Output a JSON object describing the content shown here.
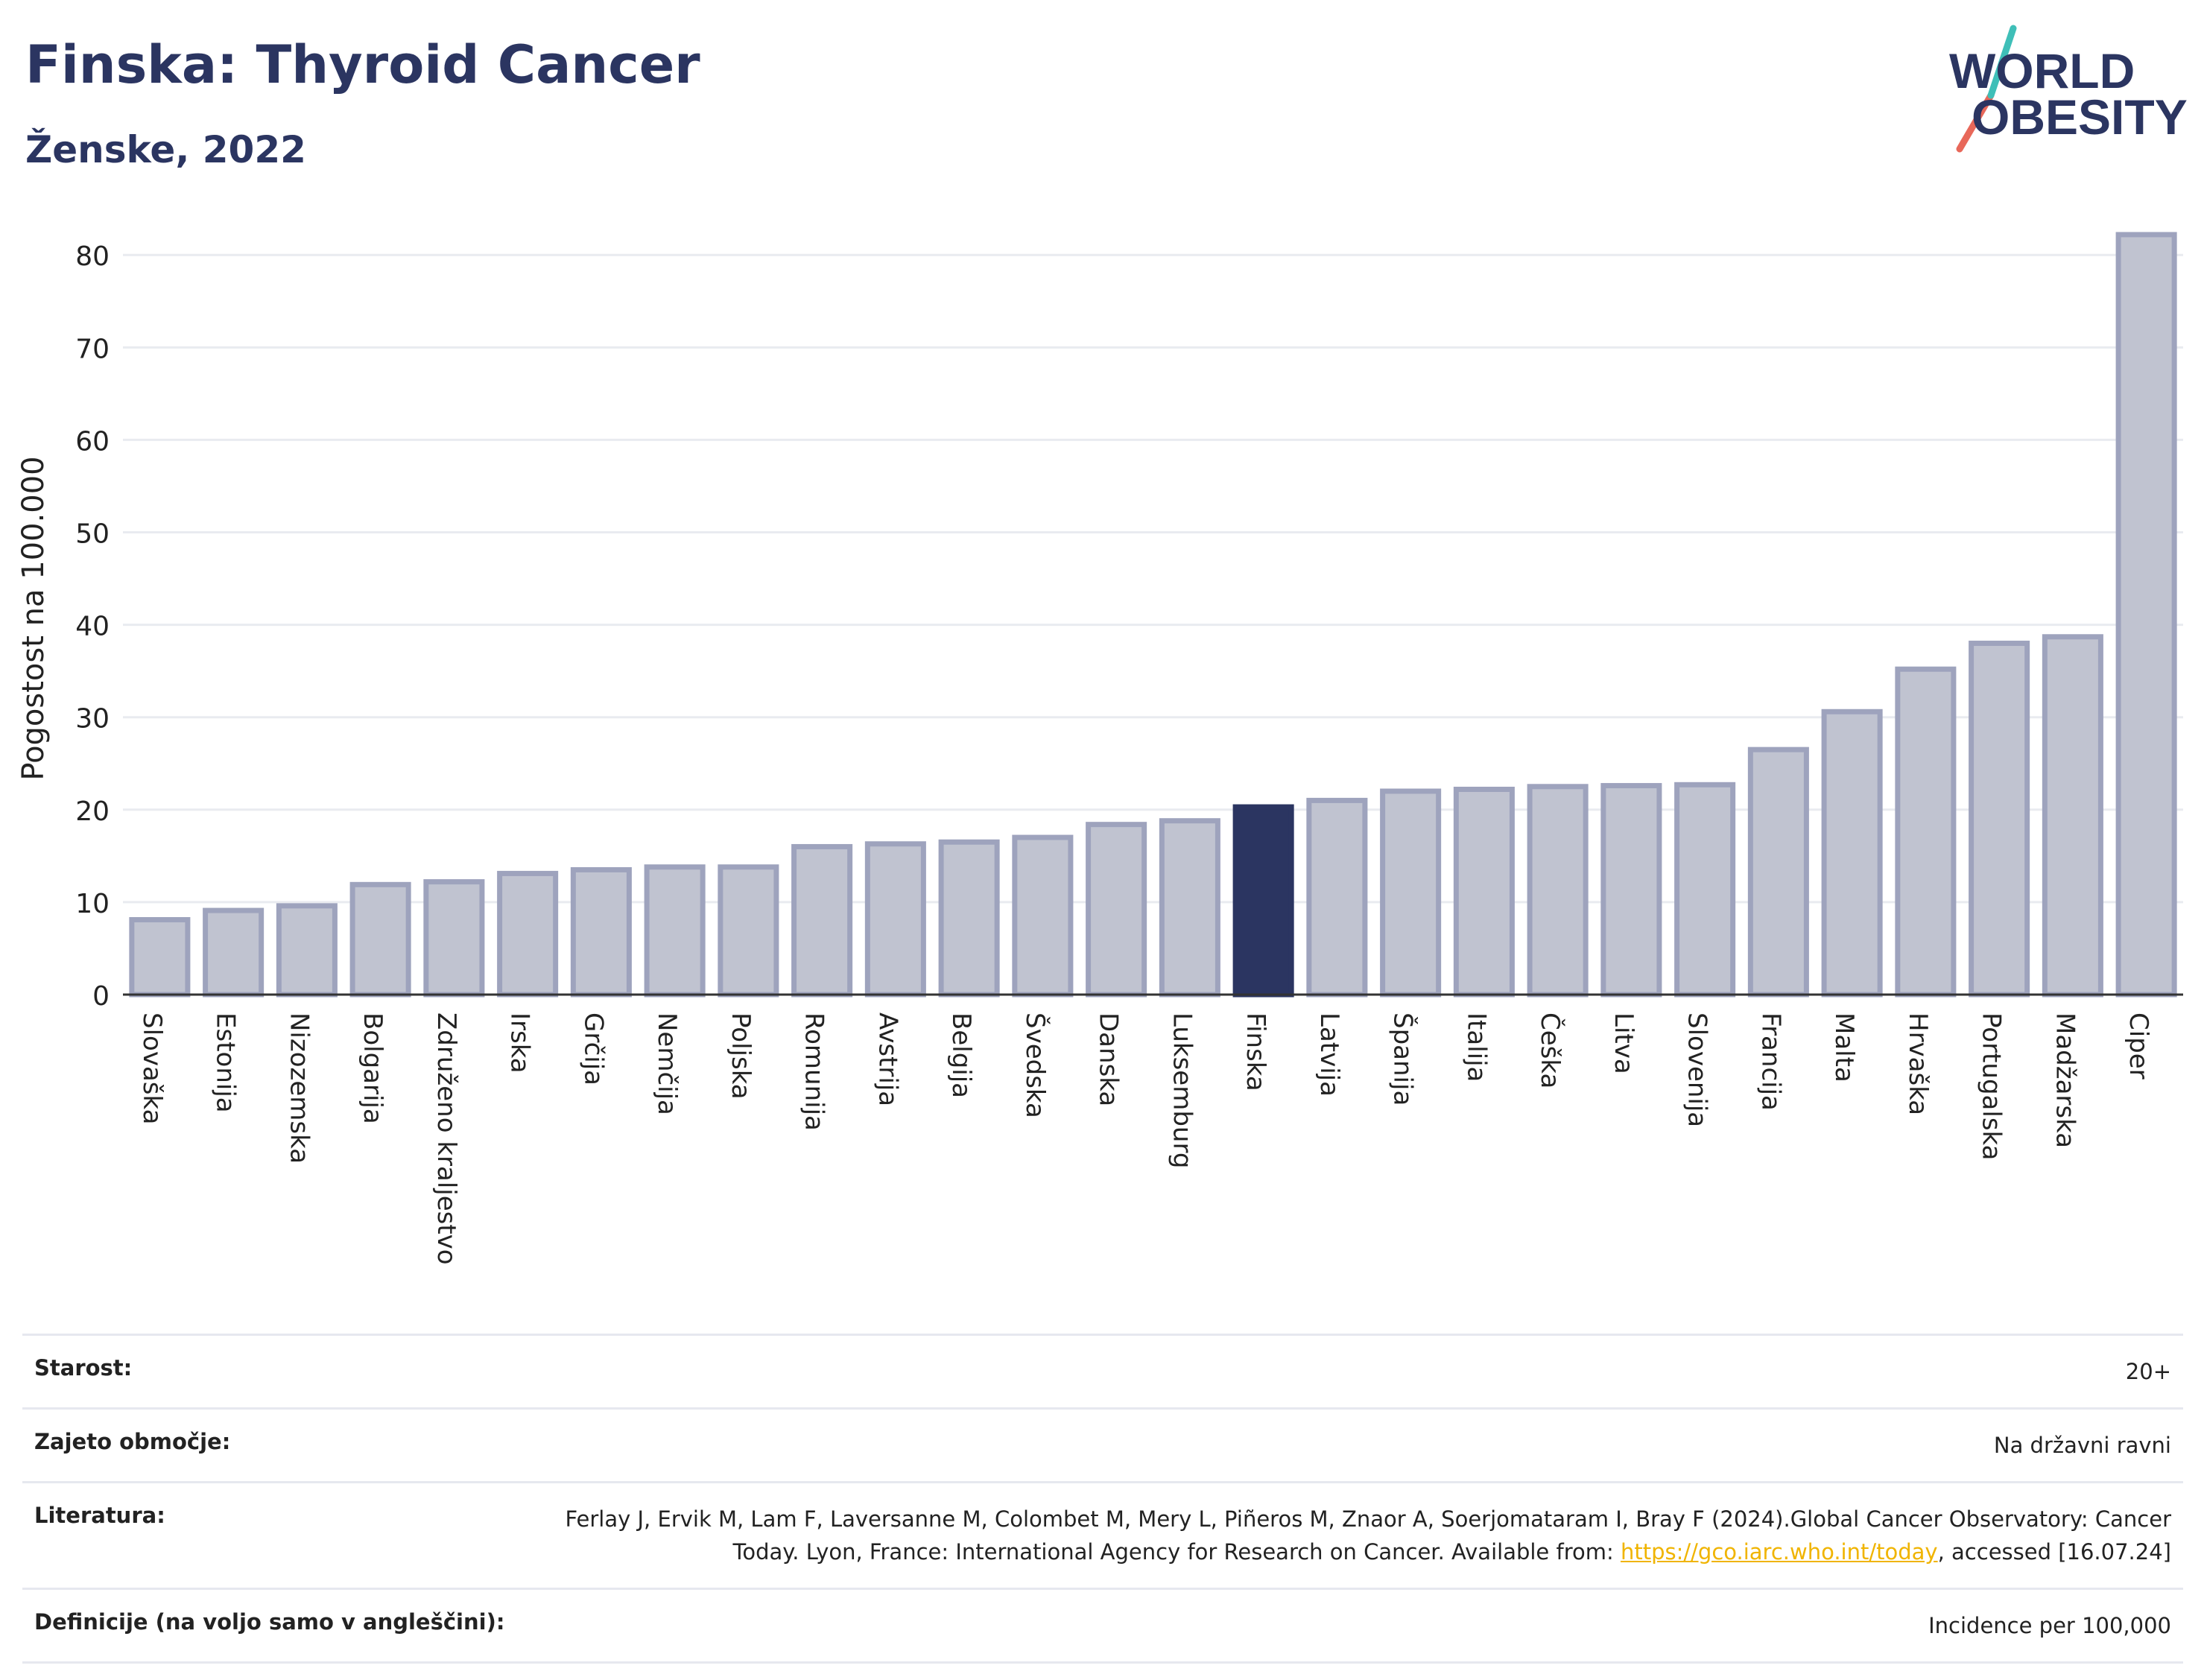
{
  "header": {
    "title": "Finska: Thyroid Cancer",
    "subtitle": "Ženske, 2022"
  },
  "logo": {
    "line1": "WORLD",
    "line2": "OBESITY",
    "colors": {
      "text": "#2b3561",
      "slash_top": "#3fbfb8",
      "slash_bottom": "#e8685a"
    }
  },
  "colors": {
    "highlight": "#2b3561",
    "bar_fill": "#c0c3d0",
    "bar_stroke": "#9ea3bd",
    "grid": "#e9ebf0",
    "axis": "#333333"
  },
  "chart_data": {
    "type": "bar",
    "ylabel": "Pogostost na 100.000",
    "xlabel": "",
    "ylim": [
      0,
      83
    ],
    "yticks": [
      0,
      10,
      20,
      30,
      40,
      50,
      60,
      70,
      80
    ],
    "grid": true,
    "highlight": "Finska",
    "categories": [
      "Slovaška",
      "Estonija",
      "Nizozemska",
      "Bolgarija",
      "Združeno kraljestvo",
      "Irska",
      "Grčija",
      "Nemčija",
      "Poljska",
      "Romunija",
      "Avstrija",
      "Belgija",
      "Švedska",
      "Danska",
      "Luksemburg",
      "Finska",
      "Latvija",
      "Španija",
      "Italija",
      "Češka",
      "Litva",
      "Slovenija",
      "Francija",
      "Malta",
      "Hrvaška",
      "Portugalska",
      "Madžarska",
      "Ciper"
    ],
    "values": [
      8.1,
      9.1,
      9.6,
      11.9,
      12.2,
      13.1,
      13.5,
      13.8,
      13.8,
      16.0,
      16.3,
      16.5,
      17.0,
      18.4,
      18.8,
      20.3,
      21.0,
      22.0,
      22.2,
      22.5,
      22.6,
      22.7,
      26.5,
      30.6,
      35.2,
      38.0,
      38.7,
      82.2
    ]
  },
  "info": {
    "age": {
      "label": "Starost:",
      "value": "20+"
    },
    "coverage": {
      "label": "Zajeto območje:",
      "value": "Na državni ravni"
    },
    "reference": {
      "label": "Literatura:",
      "text_before": "Ferlay J, Ervik M, Lam F, Laversanne M, Colombet M, Mery L, Piñeros M, Znaor A, Soerjomataram I, Bray F (2024).Global Cancer Observatory: Cancer Today. Lyon, France: International Agency for Research on Cancer. Available from: ",
      "link": "https://gco.iarc.who.int/today",
      "text_after": ", accessed [16.07.24]"
    },
    "definitions": {
      "label": "Definicije (na voljo samo v angleščini):",
      "value": "Incidence per 100,000"
    }
  }
}
